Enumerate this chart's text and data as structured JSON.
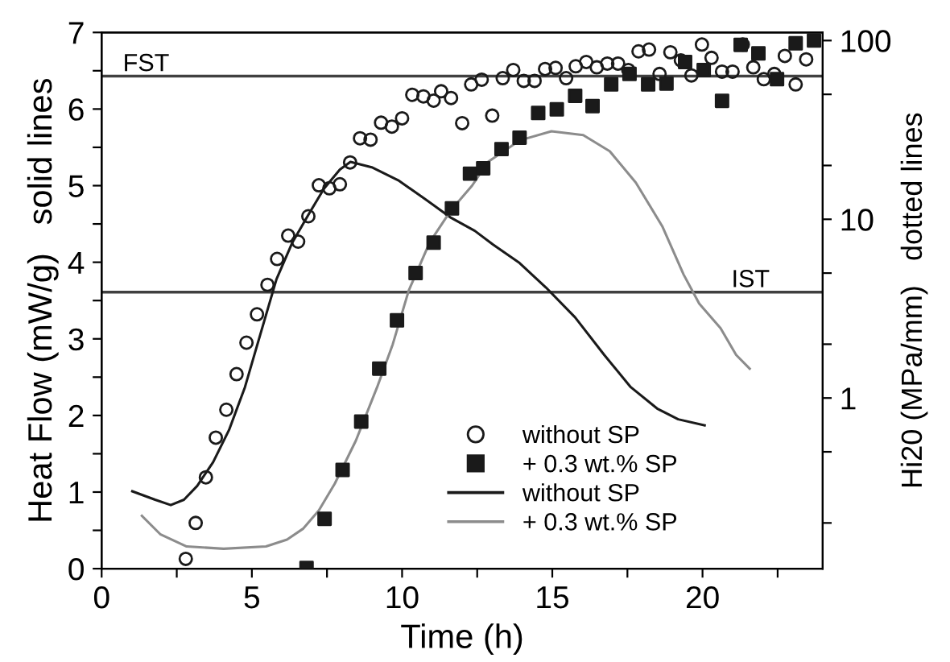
{
  "chart_data": {
    "type": "scatter",
    "xlabel": "Time (h)",
    "ylabel": "Heat Flow (mW/g)   solid lines",
    "y2label": "Hi20 (MPa/mm)   dotted lines",
    "xlim": [
      0,
      24
    ],
    "xticks": [
      0,
      {
        "value": 2.5,
        "label": null
      },
      5,
      {
        "value": 7.5,
        "label": null
      },
      10,
      {
        "value": 12.5,
        "label": null
      },
      15,
      {
        "value": 17.5,
        "label": null
      },
      20,
      {
        "value": 22.5,
        "label": null
      }
    ],
    "ylim": [
      0,
      7
    ],
    "yticks": [
      0,
      {
        "value": 0.5,
        "label": null
      },
      1,
      {
        "value": 1.5,
        "label": null
      },
      2,
      {
        "value": 2.5,
        "label": null
      },
      3,
      {
        "value": 3.5,
        "label": null
      },
      4,
      {
        "value": 4.5,
        "label": null
      },
      5,
      {
        "value": 5.5,
        "label": null
      },
      6,
      {
        "value": 6.5,
        "label": null
      },
      7
    ],
    "y2lim": [
      0.111,
      111
    ],
    "y2ticks": [
      {
        "value": 0.2,
        "label": null
      },
      {
        "value": 0.5,
        "label": null
      },
      1,
      {
        "value": 2,
        "label": null
      },
      {
        "value": 5,
        "label": null
      },
      10,
      {
        "value": 20,
        "label": null
      },
      {
        "value": 50,
        "label": null
      },
      100
    ],
    "log": "y2",
    "grid": false,
    "legend": "bottom",
    "ref_lines": [
      {
        "axis": "y",
        "value": 6.43,
        "label": "FST",
        "color": "#404040"
      },
      {
        "axis": "y",
        "value": 3.61,
        "label": "IST",
        "color": "#404040"
      }
    ],
    "series": [
      {
        "name": "without SP",
        "axis": "y2",
        "marker": "circle",
        "color": "#1a1a1a",
        "x": [
          2.8,
          3.13,
          3.47,
          3.8,
          4.15,
          4.49,
          4.82,
          5.17,
          5.52,
          5.84,
          6.21,
          6.54,
          6.88,
          7.23,
          7.58,
          7.93,
          8.27,
          8.6,
          8.95,
          9.3,
          9.66,
          10.0,
          10.34,
          10.71,
          11.05,
          11.3,
          11.63,
          12.0,
          12.3,
          12.65,
          13.0,
          13.35,
          13.7,
          14.05,
          14.41,
          14.76,
          15.11,
          15.46,
          15.78,
          16.13,
          16.48,
          16.83,
          17.19,
          17.53,
          17.87,
          18.22,
          18.57,
          18.93,
          19.28,
          19.63,
          19.98,
          20.3,
          20.65,
          21.0,
          21.34,
          21.69,
          22.04,
          22.39,
          22.74,
          23.1,
          23.45
        ],
        "values": [
          0.126,
          0.2,
          0.36,
          0.6,
          0.86,
          1.36,
          2.04,
          2.94,
          4.3,
          6.0,
          8.1,
          7.5,
          10.4,
          15.5,
          14.9,
          15.7,
          20.8,
          28.4,
          27.9,
          34.7,
          33.0,
          36.7,
          49.7,
          48.7,
          46.1,
          52,
          47.7,
          34.5,
          56.8,
          60.4,
          38.0,
          61.6,
          68.4,
          59.5,
          59.5,
          69.3,
          70.3,
          61.6,
          71.8,
          75.9,
          70.8,
          74.3,
          74.3,
          68.4,
          87,
          89,
          65,
          86,
          77.5,
          63.8,
          95,
          80,
          67,
          67,
          95,
          70.8,
          60.8,
          65,
          82,
          56.8,
          78.5
        ]
      },
      {
        "name": "+ 0.3 wt.% SP",
        "axis": "y2",
        "marker": "square",
        "color": "#1a1a1a",
        "x": [
          6.82,
          7.42,
          8.02,
          8.64,
          9.24,
          9.83,
          10.45,
          11.05,
          11.66,
          12.26,
          12.7,
          13.31,
          13.91,
          14.53,
          15.15,
          15.76,
          16.34,
          16.96,
          17.57,
          18.19,
          18.8,
          19.42,
          20.04,
          20.65,
          21.27,
          21.86,
          22.48,
          23.1,
          23.71
        ],
        "values": [
          0.112,
          0.211,
          0.396,
          0.738,
          1.46,
          2.72,
          5.0,
          7.4,
          11.5,
          18.0,
          19.3,
          24.7,
          28.6,
          39.3,
          41.2,
          49.1,
          43,
          56.8,
          65,
          56.8,
          57.5,
          75.9,
          68.4,
          46,
          94.6,
          84.7,
          60.8,
          96.5,
          100
        ]
      },
      {
        "name": "without SP",
        "type": "line",
        "marker": "none",
        "color": "#1a1a1a",
        "x": [
          1.02,
          1.78,
          2.3,
          2.74,
          3.18,
          3.71,
          4.24,
          4.77,
          5.29,
          5.82,
          6.35,
          6.88,
          7.4,
          7.93,
          8.28,
          8.99,
          9.87,
          10.75,
          11.63,
          12.42,
          13.03,
          13.91,
          14.79,
          15.76,
          16.73,
          17.61,
          18.49,
          19.19,
          20.07
        ],
        "values": [
          1.01,
          0.9,
          0.83,
          0.9,
          1.08,
          1.39,
          1.81,
          2.37,
          3.07,
          3.78,
          4.26,
          4.62,
          4.96,
          5.21,
          5.31,
          5.24,
          5.07,
          4.83,
          4.58,
          4.41,
          4.23,
          3.99,
          3.67,
          3.28,
          2.79,
          2.37,
          2.09,
          1.95,
          1.87
        ]
      },
      {
        "name": "+ 0.3 wt.% SP",
        "type": "line",
        "marker": "none",
        "color": "#8c8c8c",
        "x": [
          1.34,
          1.95,
          2.83,
          4.06,
          5.47,
          6.17,
          6.7,
          7.23,
          7.76,
          8.46,
          9.17,
          9.69,
          10.22,
          10.92,
          11.63,
          12.33,
          12.86,
          13.91,
          14.97,
          16.03,
          16.91,
          17.78,
          18.66,
          19.37,
          19.89,
          20.6,
          21.12,
          21.57
        ],
        "values": [
          0.69,
          0.45,
          0.29,
          0.26,
          0.29,
          0.38,
          0.52,
          0.76,
          1.11,
          1.67,
          2.37,
          2.93,
          3.63,
          4.26,
          4.68,
          5.0,
          5.31,
          5.59,
          5.71,
          5.66,
          5.45,
          5.04,
          4.47,
          3.84,
          3.46,
          3.14,
          2.79,
          2.61
        ]
      }
    ]
  }
}
